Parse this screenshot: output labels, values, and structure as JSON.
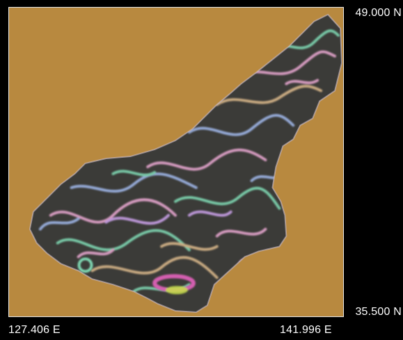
{
  "map": {
    "background_color": "#b8893f",
    "ocean_region_color": "#3b3b38",
    "frame_color": "#e8e8e8",
    "texture": "flow-visualization of ocean currents (swirling multicolor streaks)",
    "texture_colors": [
      "#e6a6cf",
      "#7fd8b3",
      "#9fb6e8",
      "#d9b78a",
      "#d45fb0",
      "#c8e04a"
    ]
  },
  "coordinates": {
    "lat_top": "49.000 N",
    "lat_bottom": "35.500 N",
    "lon_left": "127.406 E",
    "lon_right": "141.996 E"
  }
}
